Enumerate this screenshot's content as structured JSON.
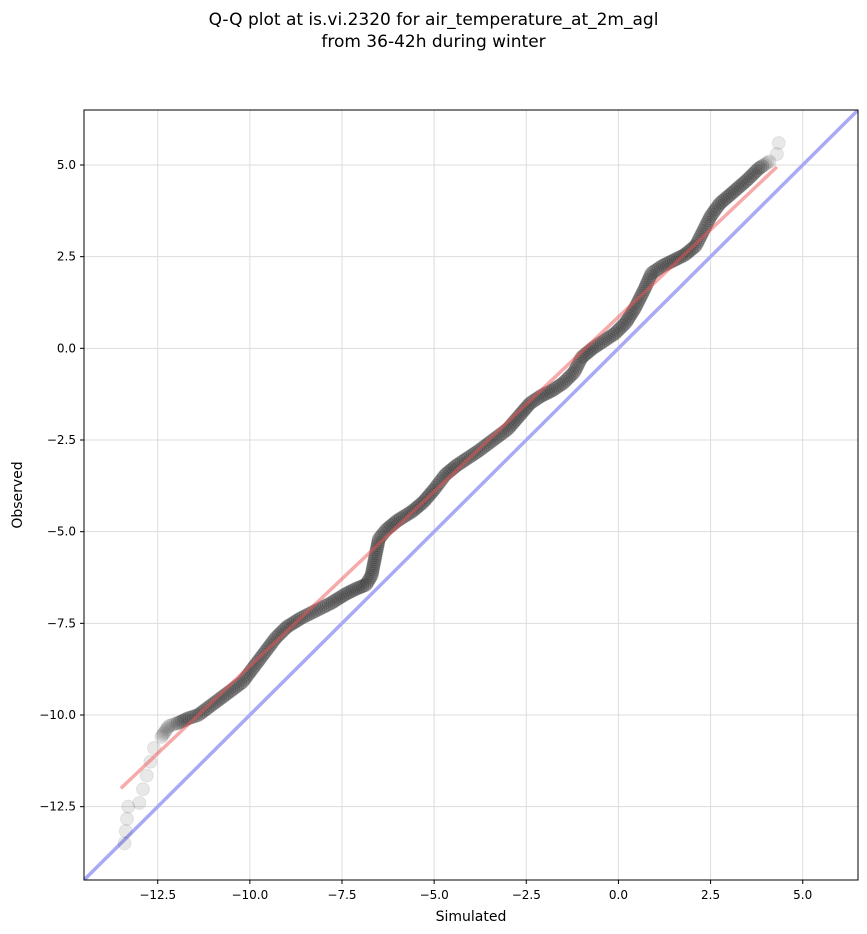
{
  "chart_data": {
    "type": "scatter",
    "title_lines": [
      "Q-Q plot at is.vi.2320 for air_temperature_at_2m_agl",
      "from 36-42h during winter"
    ],
    "xlabel": "Simulated",
    "ylabel": "Observed",
    "xlim": [
      -14.5,
      6.5
    ],
    "ylim": [
      -14.5,
      6.5
    ],
    "xticks": [
      "−12.5",
      "−10.0",
      "−7.5",
      "−5.0",
      "−2.5",
      "0.0",
      "2.5",
      "5.0"
    ],
    "xtick_values": [
      -12.5,
      -10.0,
      -7.5,
      -5.0,
      -2.5,
      0.0,
      2.5,
      5.0
    ],
    "yticks": [
      "−12.5",
      "−10.0",
      "−7.5",
      "−5.0",
      "−2.5",
      "0.0",
      "2.5",
      "5.0"
    ],
    "ytick_values": [
      -12.5,
      -10.0,
      -7.5,
      -5.0,
      -2.5,
      0.0,
      2.5,
      5.0
    ],
    "grid": true,
    "colors": {
      "points": "#1a1a1a",
      "fit_line": "#f4a3a3",
      "identity_line": "#a9aaf5",
      "grid": "#dddddd"
    },
    "quantile_curve": [
      [
        -13.4,
        -13.5
      ],
      [
        -13.3,
        -12.5
      ],
      [
        -13.0,
        -12.4
      ],
      [
        -12.6,
        -10.9
      ],
      [
        -12.4,
        -10.6
      ],
      [
        -12.2,
        -10.3
      ],
      [
        -11.9,
        -10.2
      ],
      [
        -11.7,
        -10.1
      ],
      [
        -11.4,
        -10.0
      ],
      [
        -11.0,
        -9.7
      ],
      [
        -10.6,
        -9.4
      ],
      [
        -10.2,
        -9.1
      ],
      [
        -9.9,
        -8.7
      ],
      [
        -9.6,
        -8.3
      ],
      [
        -9.3,
        -7.9
      ],
      [
        -9.0,
        -7.6
      ],
      [
        -8.6,
        -7.35
      ],
      [
        -8.2,
        -7.15
      ],
      [
        -7.8,
        -6.95
      ],
      [
        -7.4,
        -6.7
      ],
      [
        -7.1,
        -6.55
      ],
      [
        -6.85,
        -6.45
      ],
      [
        -6.7,
        -6.2
      ],
      [
        -6.6,
        -5.7
      ],
      [
        -6.5,
        -5.2
      ],
      [
        -6.3,
        -4.95
      ],
      [
        -6.0,
        -4.7
      ],
      [
        -5.6,
        -4.45
      ],
      [
        -5.3,
        -4.2
      ],
      [
        -5.0,
        -3.85
      ],
      [
        -4.7,
        -3.45
      ],
      [
        -4.4,
        -3.2
      ],
      [
        -4.1,
        -3.0
      ],
      [
        -3.8,
        -2.8
      ],
      [
        -3.4,
        -2.5
      ],
      [
        -3.0,
        -2.2
      ],
      [
        -2.7,
        -1.85
      ],
      [
        -2.4,
        -1.5
      ],
      [
        -2.1,
        -1.3
      ],
      [
        -1.8,
        -1.15
      ],
      [
        -1.5,
        -0.95
      ],
      [
        -1.2,
        -0.65
      ],
      [
        -1.0,
        -0.25
      ],
      [
        -0.7,
        0.0
      ],
      [
        -0.4,
        0.2
      ],
      [
        -0.1,
        0.4
      ],
      [
        0.2,
        0.7
      ],
      [
        0.45,
        1.1
      ],
      [
        0.7,
        1.6
      ],
      [
        0.9,
        2.05
      ],
      [
        1.2,
        2.25
      ],
      [
        1.5,
        2.4
      ],
      [
        1.8,
        2.55
      ],
      [
        2.1,
        2.8
      ],
      [
        2.3,
        3.2
      ],
      [
        2.5,
        3.6
      ],
      [
        2.75,
        3.95
      ],
      [
        3.1,
        4.25
      ],
      [
        3.5,
        4.6
      ],
      [
        3.8,
        4.9
      ],
      [
        4.1,
        5.1
      ],
      [
        4.3,
        5.3
      ]
    ],
    "outliers": [
      [
        4.35,
        5.6
      ]
    ],
    "fit_line": {
      "x": [
        -13.5,
        4.3
      ],
      "y": [
        -12.0,
        4.95
      ]
    },
    "identity_line": {
      "x": [
        -14.5,
        6.5
      ],
      "y": [
        -14.5,
        6.5
      ]
    }
  }
}
